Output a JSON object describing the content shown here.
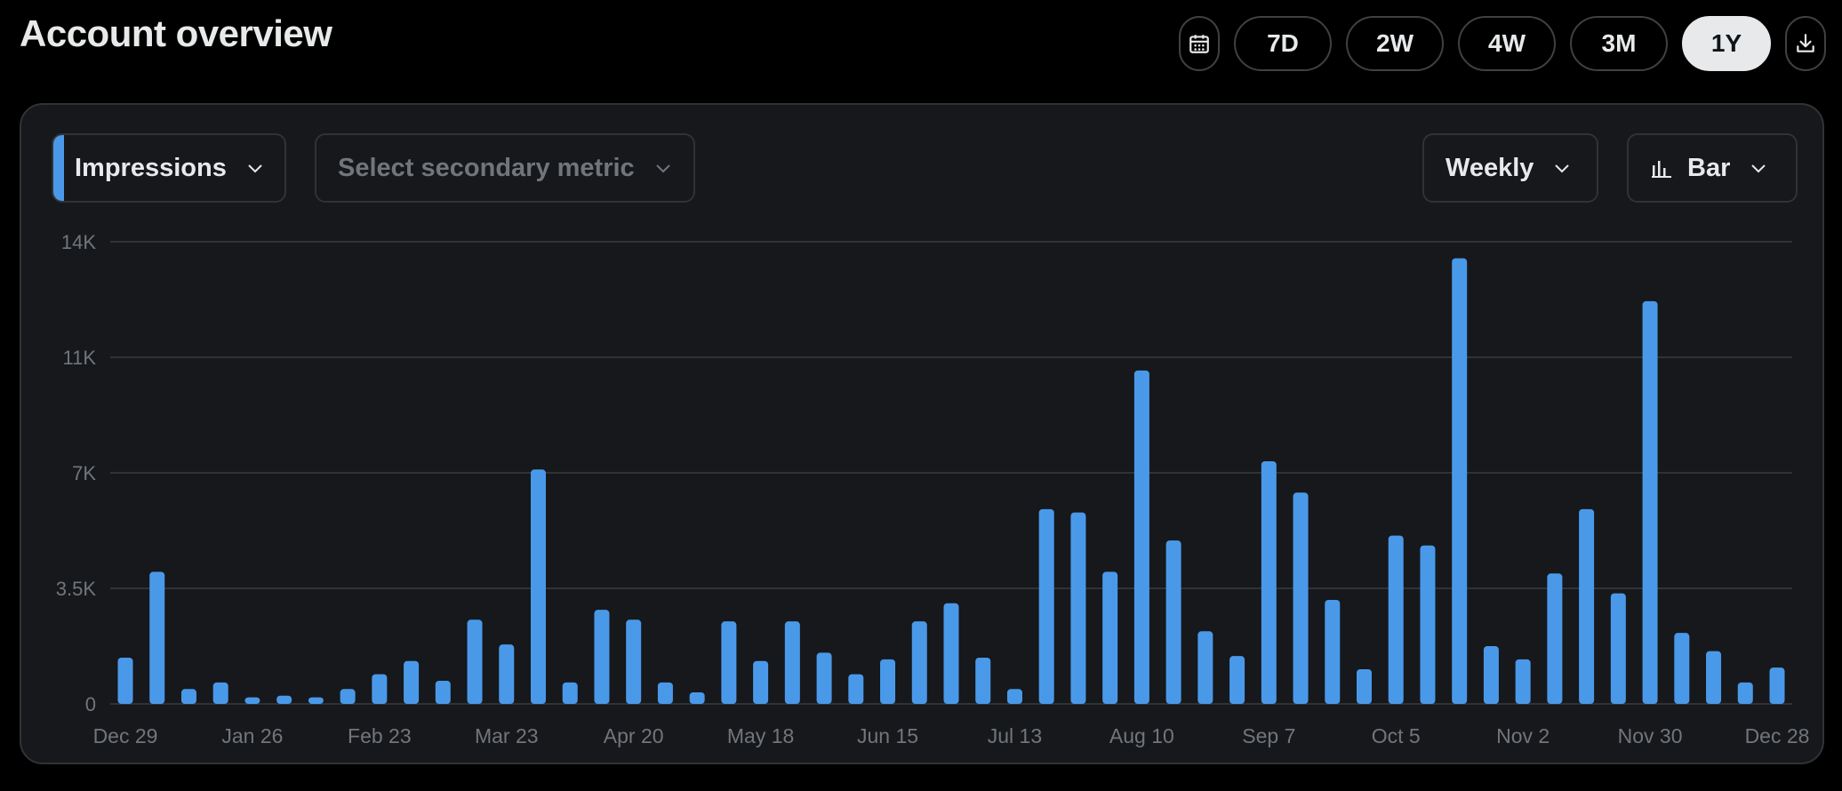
{
  "header": {
    "title": "Account overview"
  },
  "range_buttons": [
    "7D",
    "2W",
    "4W",
    "3M",
    "1Y"
  ],
  "active_range": "1Y",
  "controls": {
    "primary_metric": "Impressions",
    "secondary_metric_placeholder": "Select secondary metric",
    "period": "Weekly",
    "chart_type": "Bar"
  },
  "colors": {
    "bar": "#4a99e9",
    "accent": "#4a99e9"
  },
  "chart_data": {
    "type": "bar",
    "title": "",
    "xlabel": "",
    "ylabel": "",
    "ylim": [
      0,
      14000
    ],
    "y_ticks": [
      "0",
      "3.5K",
      "7K",
      "11K",
      "14K"
    ],
    "x_tick_labels": [
      "Dec 29",
      "Jan 26",
      "Feb 23",
      "Mar 23",
      "Apr 20",
      "May 18",
      "Jun 15",
      "Jul 13",
      "Aug 10",
      "Sep 7",
      "Oct 5",
      "Nov 2",
      "Nov 30",
      "Dec 28"
    ],
    "grid": true,
    "series": [
      {
        "values": [
          1400,
          4000,
          450,
          650,
          200,
          250,
          200,
          450,
          900,
          1300,
          700,
          2550,
          1800,
          7100,
          650,
          2850,
          2550,
          650,
          350,
          2500,
          1300,
          2500,
          1550,
          900,
          1350,
          2500,
          3050,
          1400,
          450,
          5900,
          5800,
          4000,
          10100,
          4950,
          2200,
          1450,
          7350,
          6400,
          3150,
          1050,
          5100,
          4800,
          13500,
          1750,
          1350,
          3950,
          5900,
          3350,
          12200,
          2150,
          1600,
          650,
          1100
        ]
      }
    ]
  }
}
